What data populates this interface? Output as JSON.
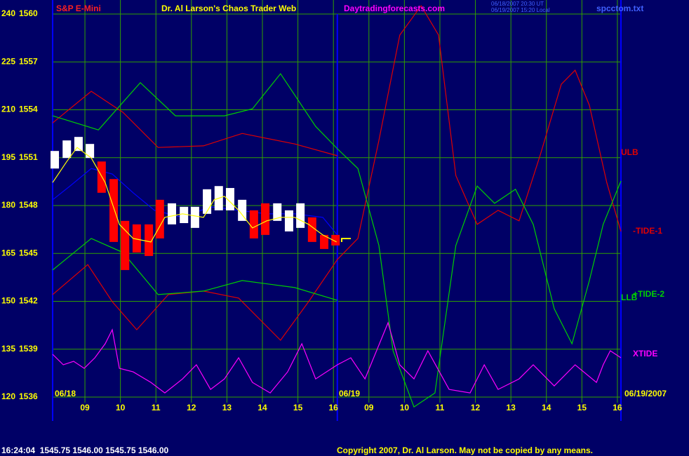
{
  "chart_data": {
    "type": "line",
    "title": "S&P E-Mini",
    "subtitle": "Dr. Al Larson's Chaos Trader Web",
    "website": "Daytradingforecasts.com",
    "timestamps": [
      "06/18/2007 20:30 UT",
      "06/19/2007 15:20 Local"
    ],
    "file": "spcctom.txt",
    "date_labels": [
      "06/18",
      "06/19",
      "06/19/2007"
    ],
    "status": "16:24:04  1545.75 1546.00 1545.75 1546.00",
    "copyright": "Copyright 2007, Dr. Al Larson. May not be copied by any means.",
    "background": "#000066",
    "grid": true,
    "grid_color": "#30a000",
    "xlim": [
      -0.91,
      15.1
    ],
    "xticks": [
      {
        "value": 0,
        "label": "09"
      },
      {
        "value": 1,
        "label": "10"
      },
      {
        "value": 2,
        "label": "11"
      },
      {
        "value": 3,
        "label": "12"
      },
      {
        "value": 4,
        "label": "13"
      },
      {
        "value": 5,
        "label": "14"
      },
      {
        "value": 6,
        "label": "15"
      },
      {
        "value": 7,
        "label": "16"
      },
      {
        "value": 8,
        "label": "09"
      },
      {
        "value": 9,
        "label": "10"
      },
      {
        "value": 10,
        "label": "11"
      },
      {
        "value": 11,
        "label": "12"
      },
      {
        "value": 12,
        "label": "13"
      },
      {
        "value": 13,
        "label": "14"
      },
      {
        "value": 14,
        "label": "15"
      },
      {
        "value": 15,
        "label": "16"
      }
    ],
    "session_break": 7.11,
    "ylim": [
      120,
      240
    ],
    "yticks": [
      120,
      135,
      150,
      165,
      180,
      195,
      210,
      225,
      240
    ],
    "y2lim": [
      1536,
      1560
    ],
    "y2ticks": [
      1536,
      1539,
      1542,
      1545,
      1548,
      1551,
      1554,
      1557,
      1560
    ],
    "series": [
      {
        "name": "ULB",
        "color": "#e00000",
        "x": [
          -0.91,
          0.18,
          1.07,
          2.06,
          3.34,
          4.43,
          5.91,
          7.11
        ],
        "values": [
          205.9,
          215.8,
          209.2,
          198.2,
          198.7,
          202.6,
          199.3,
          195.6
        ]
      },
      {
        "name": "-TIDE-1",
        "color": "#e00000",
        "x": [
          -0.91,
          0.08,
          0.77,
          1.46,
          2.35,
          3.34,
          4.33,
          5.51,
          6.3,
          7.11,
          7.69,
          8.28,
          8.87,
          9.47,
          9.96,
          10.45,
          11.05,
          11.64,
          12.23,
          12.83,
          13.42,
          13.81,
          14.21,
          14.7,
          15.1
        ],
        "values": [
          152.1,
          161.5,
          149.9,
          141.1,
          152.1,
          153.2,
          151.0,
          137.8,
          149.9,
          163.1,
          169.7,
          200.4,
          233.4,
          242.6,
          233.4,
          189.4,
          174.1,
          178.5,
          175.2,
          196.0,
          218.0,
          222.4,
          211.4,
          187.2,
          171.9
        ]
      },
      {
        "name": "+TIDE-2",
        "color": "#00d000",
        "x": [
          -0.91,
          0.38,
          1.56,
          2.55,
          3.93,
          4.72,
          5.51,
          6.5,
          7.11,
          7.69,
          8.28,
          8.68,
          9.27,
          9.86,
          10.45,
          11.05,
          11.54,
          12.13,
          12.63,
          13.22,
          13.72,
          14.21,
          14.6,
          15.1
        ],
        "values": [
          208.1,
          203.7,
          218.5,
          208.1,
          208.1,
          210.3,
          221.3,
          204.8,
          197.8,
          191.6,
          167.5,
          134.5,
          116.9,
          121.3,
          167.5,
          186.1,
          180.7,
          185.1,
          174.1,
          147.7,
          136.7,
          156.5,
          174.1,
          187.7
        ]
      },
      {
        "name": "LLB",
        "color": "#00d000",
        "x": [
          -0.91,
          0.18,
          1.07,
          2.06,
          3.34,
          4.43,
          5.91,
          7.11
        ],
        "values": [
          159.8,
          169.7,
          165.3,
          152.1,
          153.2,
          156.5,
          154.3,
          150.3
        ]
      },
      {
        "name": "XTIDE",
        "color": "#ff00ff",
        "x": [
          -0.91,
          -0.61,
          -0.32,
          -0.02,
          0.28,
          0.57,
          0.77,
          0.97,
          1.36,
          1.86,
          2.25,
          2.75,
          3.14,
          3.54,
          3.93,
          4.33,
          4.72,
          5.22,
          5.71,
          6.11,
          6.5,
          7.11,
          7.49,
          7.89,
          8.54,
          8.87,
          9.27,
          9.66,
          10.26,
          10.85,
          11.25,
          11.64,
          12.23,
          12.63,
          13.22,
          13.81,
          14.41,
          14.6,
          14.8,
          15.1
        ],
        "values": [
          133.4,
          130.1,
          131.2,
          129.0,
          132.3,
          136.7,
          141.1,
          129.0,
          127.9,
          124.6,
          121.3,
          125.7,
          130.1,
          122.4,
          125.7,
          132.3,
          124.6,
          121.3,
          127.9,
          136.7,
          125.7,
          130.1,
          132.3,
          125.7,
          143.3,
          130.1,
          125.7,
          134.5,
          122.4,
          121.3,
          130.1,
          122.4,
          125.7,
          130.1,
          123.5,
          130.1,
          124.6,
          130.1,
          134.5,
          132.3
        ]
      },
      {
        "color": "#0000ff",
        "x": [
          -0.91,
          -0.42,
          0.18,
          0.77,
          1.36,
          1.96,
          2.75,
          3.54,
          4.33,
          5.12,
          5.91,
          6.7,
          7.11
        ],
        "values": [
          181.8,
          186.1,
          191.6,
          189.9,
          184.0,
          178.5,
          176.3,
          179.6,
          178.5,
          177.4,
          177.4,
          176.3,
          170.8
        ]
      }
    ],
    "price_bars": {
      "x": [
        -0.85,
        -0.51,
        -0.18,
        0.14,
        0.47,
        0.81,
        1.13,
        1.46,
        1.8,
        2.11,
        2.45,
        2.79,
        3.1,
        3.44,
        3.77,
        4.09,
        4.43,
        4.76,
        5.08,
        5.42,
        5.75,
        6.07,
        6.4,
        6.74,
        7.06
      ],
      "high": [
        197.1,
        200.4,
        201.5,
        199.3,
        193.8,
        188.3,
        175.2,
        174.1,
        174.1,
        181.8,
        180.7,
        179.6,
        179.6,
        185.1,
        186.1,
        185.5,
        181.8,
        178.5,
        180.7,
        180.7,
        178.5,
        180.7,
        176.3,
        170.8,
        170.8
      ],
      "low": [
        191.6,
        194.9,
        197.1,
        194.9,
        184.0,
        168.6,
        159.8,
        165.3,
        164.2,
        169.7,
        174.1,
        174.5,
        173.0,
        177.4,
        178.5,
        178.5,
        175.2,
        169.7,
        170.8,
        175.2,
        171.9,
        173.0,
        168.6,
        166.4,
        167.5
      ],
      "colors": [
        "#ffffff",
        "#ffffff",
        "#ffffff",
        "#ffffff",
        "#ff0000",
        "#ff0000",
        "#ff0000",
        "#ff0000",
        "#ff0000",
        "#ff0000",
        "#ffffff",
        "#ffffff",
        "#ffffff",
        "#ffffff",
        "#ffffff",
        "#ffffff",
        "#ffffff",
        "#ff0000",
        "#ff0000",
        "#ffffff",
        "#ffffff",
        "#ffffff",
        "#ff0000",
        "#ff0000",
        "#ff0000"
      ]
    },
    "smooth_line": {
      "color": "#ffff00",
      "x": [
        -0.91,
        -0.51,
        -0.22,
        0.18,
        0.57,
        0.97,
        1.36,
        1.86,
        2.25,
        2.75,
        3.34,
        3.64,
        3.93,
        4.33,
        4.72,
        5.12,
        5.51,
        5.91,
        6.3,
        6.7,
        7.09
      ],
      "values": [
        187.2,
        193.8,
        198.2,
        194.9,
        187.2,
        174.1,
        169.7,
        168.6,
        176.3,
        177.4,
        176.3,
        181.8,
        182.9,
        178.5,
        173.0,
        175.2,
        176.3,
        176.3,
        174.1,
        170.8,
        168.6
      ]
    }
  }
}
